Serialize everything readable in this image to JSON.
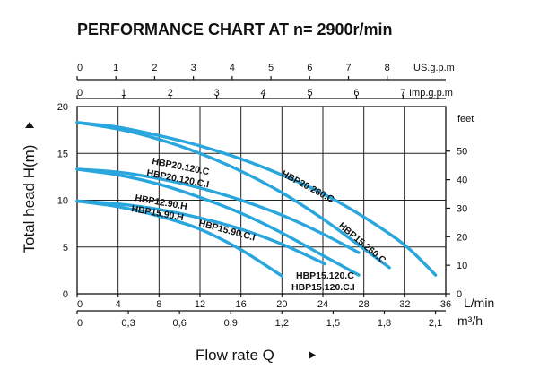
{
  "chart_data": {
    "type": "line",
    "title": "PERFORMANCE CHART AT n= 2900r/min",
    "xlabel": "Flow rate Q",
    "ylabel": "Total head H(m)",
    "xlim": [
      0,
      36
    ],
    "ylim": [
      0,
      20
    ],
    "grid": true,
    "axes": {
      "x_lmin": {
        "unit": "L/min",
        "ticks": [
          0,
          4,
          8,
          12,
          16,
          20,
          24,
          28,
          32,
          36
        ],
        "labels": [
          "0",
          "4",
          "8",
          "12",
          "16",
          "20",
          "24",
          "28",
          "32",
          "36"
        ]
      },
      "x_m3h": {
        "unit": "m³/h",
        "ticks": [
          0,
          5,
          10,
          15,
          20,
          25,
          30,
          35
        ],
        "labels": [
          "0",
          "0,3",
          "0,6",
          "0,9",
          "1,2",
          "1,5",
          "1,8",
          "2,1"
        ]
      },
      "x_usgpm": {
        "unit": "US.g.p.m",
        "ticks": [
          0,
          3.785,
          7.571,
          11.356,
          15.142,
          18.927,
          22.712,
          26.498,
          30.283
        ],
        "labels": [
          "0",
          "1",
          "2",
          "3",
          "4",
          "5",
          "6",
          "7",
          "8"
        ]
      },
      "x_impgpm": {
        "unit": "Imp.g.p.m",
        "ticks": [
          0,
          4.546,
          9.092,
          13.638,
          18.184,
          22.73,
          27.276,
          31.822
        ],
        "labels": [
          "0",
          "1",
          "2",
          "3",
          "4",
          "5",
          "6",
          "7"
        ]
      },
      "y_m": {
        "ticks": [
          0,
          5,
          10,
          15,
          20
        ],
        "labels": [
          "0",
          "5",
          "10",
          "15",
          "20"
        ]
      },
      "y_feet": {
        "unit": "feet",
        "ticks": [
          0,
          3.048,
          6.096,
          9.144,
          12.192,
          15.24
        ],
        "labels": [
          "0",
          "10",
          "20",
          "30",
          "40",
          "50"
        ]
      }
    },
    "series": [
      {
        "name": "HBP20.260.C",
        "x": [
          0,
          4,
          8,
          12,
          16,
          20,
          24,
          28,
          32,
          35
        ],
        "y": [
          18.3,
          17.8,
          16.9,
          15.8,
          14.4,
          12.7,
          10.7,
          8.2,
          5.2,
          2.0
        ]
      },
      {
        "name": "HBP15.260.C",
        "x": [
          0,
          4,
          8,
          12,
          16,
          20,
          24,
          28,
          30.5
        ],
        "y": [
          18.3,
          17.6,
          16.5,
          15.0,
          13.1,
          10.8,
          8.0,
          4.8,
          2.8
        ]
      },
      {
        "name": "HBP20.120.C / HBP20.120.C.I",
        "x": [
          0,
          4,
          8,
          12,
          16,
          20,
          24,
          27.5
        ],
        "y": [
          13.3,
          13.0,
          12.3,
          11.3,
          10.0,
          8.4,
          6.4,
          4.4
        ]
      },
      {
        "name": "HBP15.120.C / HBP15.120.C.I",
        "x": [
          0,
          4,
          8,
          12,
          16,
          20,
          24,
          27.5
        ],
        "y": [
          13.3,
          12.7,
          11.7,
          10.3,
          8.6,
          6.5,
          4.1,
          2.0
        ]
      },
      {
        "name": "HBP12.90.H",
        "x": [
          0,
          4,
          8,
          12,
          16,
          20,
          24.2
        ],
        "y": [
          9.9,
          9.6,
          9.0,
          8.1,
          6.9,
          5.3,
          3.2
        ]
      },
      {
        "name": "HBP15.90.H / HBP15.90.C.I",
        "x": [
          0,
          4,
          8,
          12,
          16,
          20
        ],
        "y": [
          9.9,
          9.3,
          8.3,
          6.9,
          4.7,
          1.9
        ]
      }
    ],
    "curve_labels": [
      "HBP20.260.C",
      "HBP15.260.C",
      "HBP20.120.C",
      "HBP20.120.C.I",
      "HBP12.90.H",
      "HBP15.90.H",
      "HBP15.90.C.I",
      "HBP15.120.C",
      "HBP15.120.C.I"
    ]
  },
  "colors": {
    "curve": "#29a6dd",
    "grid": "#222222",
    "text": "#111111"
  }
}
